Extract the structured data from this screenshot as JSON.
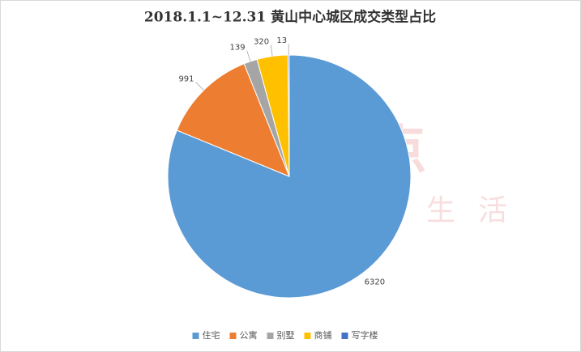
{
  "chart_data": {
    "type": "pie",
    "title": "2018.1.1~12.31 黄山中心城区成交类型占比",
    "categories": [
      "住宅",
      "公寓",
      "别墅",
      "商铺",
      "写字楼"
    ],
    "values": [
      6320,
      991,
      139,
      320,
      13
    ],
    "colors": [
      "#5b9bd5",
      "#ed7d31",
      "#a5a5a5",
      "#ffc000",
      "#4472c4"
    ],
    "legend": "bottom"
  },
  "watermark": {
    "brand": "搜狐焦点",
    "slogan": "爱家，爱生活"
  }
}
